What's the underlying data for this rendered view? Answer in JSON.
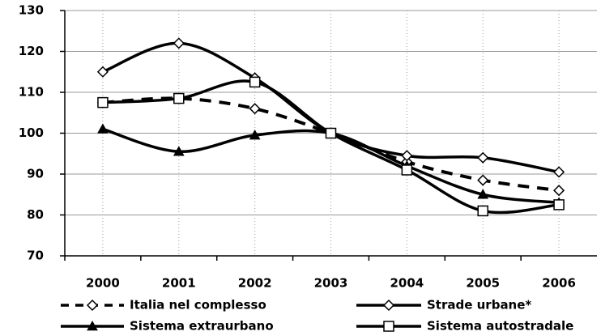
{
  "chart_data": {
    "type": "line",
    "categories": [
      "2000",
      "2001",
      "2002",
      "2003",
      "2004",
      "2005",
      "2006"
    ],
    "series": [
      {
        "name": "Italia nel complesso",
        "color": "#000000",
        "marker": "diamond",
        "dashed": true,
        "values": [
          107.5,
          108.5,
          106,
          100,
          93,
          88.5,
          86
        ]
      },
      {
        "name": "Strade urbane*",
        "color": "#000000",
        "marker": "diamond",
        "dashed": false,
        "values": [
          115,
          122,
          113.5,
          100,
          94.5,
          94,
          90.5
        ]
      },
      {
        "name": "Sistema extraurbano",
        "color": "#000000",
        "marker": "triangle",
        "dashed": false,
        "values": [
          101,
          95.5,
          99.5,
          100,
          92,
          85,
          83
        ]
      },
      {
        "name": "Sistema autostradale",
        "color": "#000000",
        "marker": "square",
        "dashed": false,
        "values": [
          107.5,
          108.5,
          112.5,
          100,
          91,
          81,
          82.5
        ]
      }
    ],
    "ylim": [
      70,
      130
    ],
    "yticks": [
      70,
      80,
      90,
      100,
      110,
      120,
      130
    ],
    "grid": true
  }
}
